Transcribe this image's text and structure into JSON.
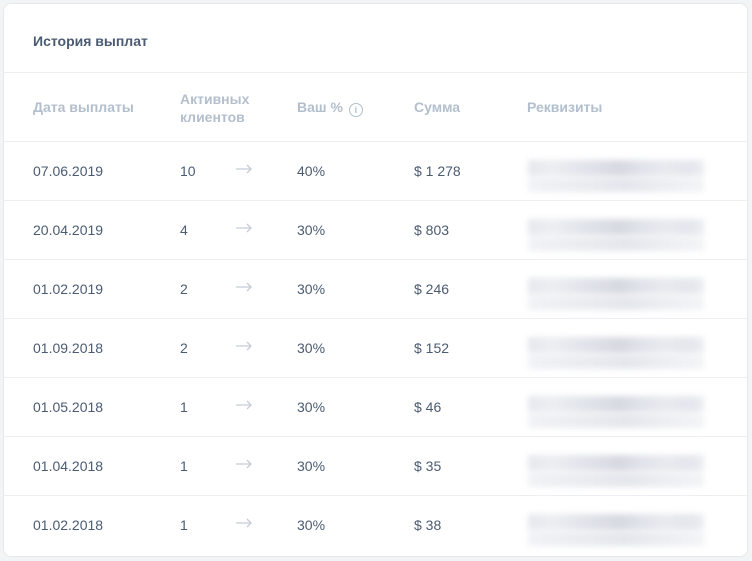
{
  "card": {
    "title": "История выплат"
  },
  "table": {
    "headers": {
      "date": "Дата выплаты",
      "active_line1": "Активных",
      "active_line2": "клиентов",
      "percent": "Ваш %",
      "sum": "Сумма",
      "requisites": "Реквизиты"
    },
    "rows": [
      {
        "date": "07.06.2019",
        "active": "10",
        "percent": "40%",
        "sum": "$ 1 278"
      },
      {
        "date": "20.04.2019",
        "active": "4",
        "percent": "30%",
        "sum": "$ 803"
      },
      {
        "date": "01.02.2019",
        "active": "2",
        "percent": "30%",
        "sum": "$ 246"
      },
      {
        "date": "01.09.2018",
        "active": "2",
        "percent": "30%",
        "sum": "$ 152"
      },
      {
        "date": "01.05.2018",
        "active": "1",
        "percent": "30%",
        "sum": "$ 46"
      },
      {
        "date": "01.04.2018",
        "active": "1",
        "percent": "30%",
        "sum": "$ 35"
      },
      {
        "date": "01.02.2018",
        "active": "1",
        "percent": "30%",
        "sum": "$ 38"
      }
    ]
  },
  "icons": {
    "info": "info-icon",
    "arrow": "arrow-right-icon"
  },
  "colors": {
    "text": "#4b5b72",
    "header_text": "#b3bfcc",
    "arrow": "#c5ccd6",
    "divider": "#eceef2"
  }
}
